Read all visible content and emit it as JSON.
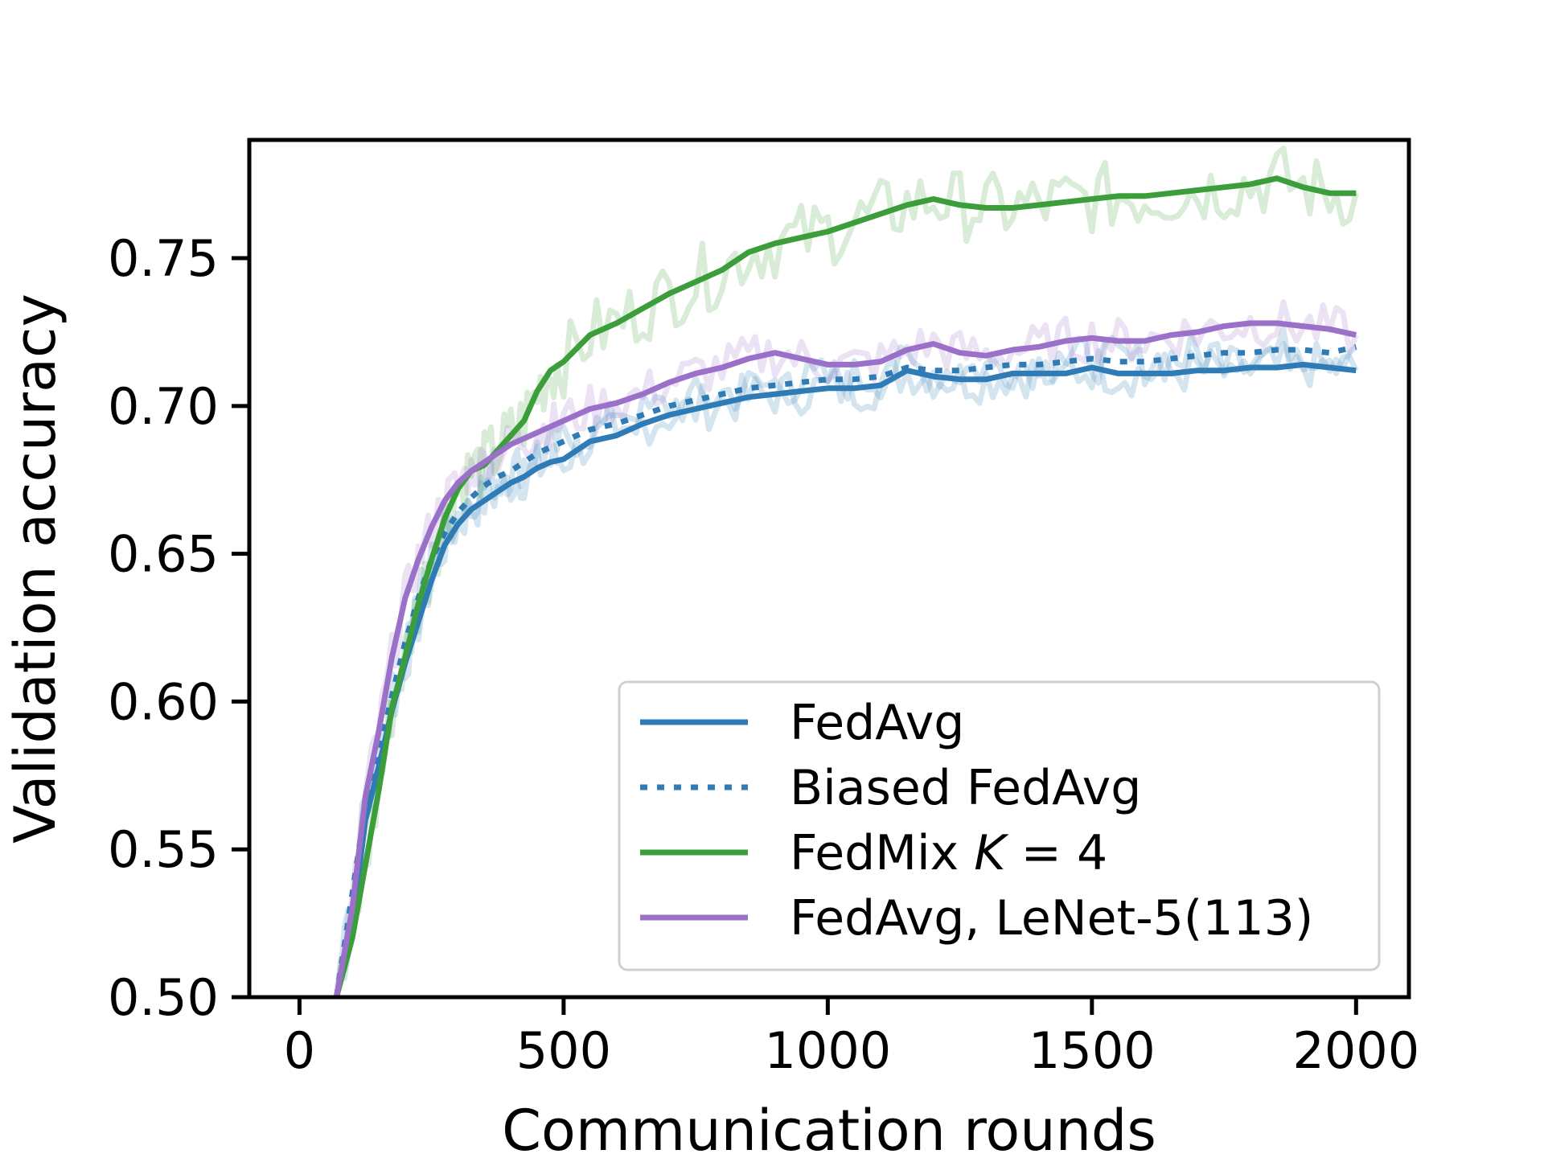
{
  "chart_data": {
    "type": "line",
    "title": "",
    "xlabel": "Communication rounds",
    "ylabel": "Validation accuracy",
    "xlim": [
      -95,
      2100
    ],
    "ylim": [
      0.5,
      0.79
    ],
    "xticks": [
      0,
      500,
      1000,
      1500,
      2000
    ],
    "xtick_labels": [
      "0",
      "500",
      "1000",
      "1500",
      "2000"
    ],
    "yticks": [
      0.5,
      0.55,
      0.6,
      0.65,
      0.7,
      0.75
    ],
    "ytick_labels": [
      "0.50",
      "0.55",
      "0.60",
      "0.65",
      "0.70",
      "0.75"
    ],
    "grid": false,
    "legend_position": "lower-right",
    "x": [
      70,
      100,
      125,
      150,
      175,
      200,
      225,
      250,
      275,
      300,
      325,
      350,
      375,
      400,
      425,
      450,
      475,
      500,
      550,
      600,
      650,
      700,
      750,
      800,
      850,
      900,
      950,
      1000,
      1050,
      1100,
      1150,
      1200,
      1250,
      1300,
      1350,
      1400,
      1450,
      1500,
      1550,
      1600,
      1650,
      1700,
      1750,
      1800,
      1850,
      1900,
      1950,
      2000
    ],
    "series": [
      {
        "name": "FedAvg",
        "legend_label": "FedAvg",
        "color": "#2f7bb6",
        "style": "solid",
        "values": [
          0.5,
          0.525,
          0.56,
          0.578,
          0.597,
          0.613,
          0.627,
          0.641,
          0.653,
          0.66,
          0.665,
          0.668,
          0.671,
          0.674,
          0.676,
          0.679,
          0.681,
          0.682,
          0.688,
          0.69,
          0.694,
          0.697,
          0.699,
          0.701,
          0.703,
          0.704,
          0.705,
          0.706,
          0.706,
          0.707,
          0.712,
          0.71,
          0.709,
          0.709,
          0.711,
          0.711,
          0.711,
          0.713,
          0.711,
          0.711,
          0.711,
          0.712,
          0.712,
          0.713,
          0.713,
          0.714,
          0.713,
          0.712
        ]
      },
      {
        "name": "Biased FedAvg",
        "legend_label": "Biased FedAvg",
        "color": "#2f7bb6",
        "style": "dotted",
        "values": [
          0.5,
          0.535,
          0.565,
          0.583,
          0.602,
          0.62,
          0.635,
          0.648,
          0.657,
          0.664,
          0.669,
          0.673,
          0.676,
          0.678,
          0.681,
          0.684,
          0.686,
          0.688,
          0.692,
          0.694,
          0.697,
          0.7,
          0.702,
          0.704,
          0.706,
          0.707,
          0.708,
          0.709,
          0.709,
          0.71,
          0.713,
          0.712,
          0.712,
          0.713,
          0.714,
          0.714,
          0.715,
          0.716,
          0.715,
          0.715,
          0.716,
          0.717,
          0.718,
          0.718,
          0.719,
          0.719,
          0.718,
          0.72
        ]
      },
      {
        "name": "FedMix K = 4",
        "legend_label": "FedMix",
        "legend_math_var": "K",
        "legend_math_rest": " = 4",
        "color": "#3c9e3a",
        "style": "solid",
        "values": [
          0.5,
          0.52,
          0.545,
          0.57,
          0.598,
          0.615,
          0.633,
          0.648,
          0.662,
          0.672,
          0.678,
          0.68,
          0.685,
          0.69,
          0.695,
          0.705,
          0.712,
          0.715,
          0.724,
          0.728,
          0.733,
          0.738,
          0.742,
          0.746,
          0.752,
          0.755,
          0.757,
          0.759,
          0.762,
          0.765,
          0.768,
          0.77,
          0.768,
          0.767,
          0.767,
          0.768,
          0.769,
          0.77,
          0.771,
          0.771,
          0.772,
          0.773,
          0.774,
          0.775,
          0.777,
          0.774,
          0.772,
          0.772
        ]
      },
      {
        "name": "FedAvg, LeNet-5(113)",
        "legend_label": "FedAvg, LeNet-5(113)",
        "color": "#9a70c9",
        "style": "solid",
        "values": [
          0.5,
          0.53,
          0.568,
          0.59,
          0.615,
          0.635,
          0.648,
          0.659,
          0.668,
          0.674,
          0.678,
          0.681,
          0.684,
          0.687,
          0.689,
          0.691,
          0.693,
          0.695,
          0.699,
          0.701,
          0.704,
          0.708,
          0.711,
          0.713,
          0.716,
          0.718,
          0.716,
          0.714,
          0.714,
          0.715,
          0.719,
          0.721,
          0.718,
          0.717,
          0.719,
          0.72,
          0.722,
          0.723,
          0.722,
          0.722,
          0.724,
          0.725,
          0.727,
          0.728,
          0.728,
          0.727,
          0.726,
          0.724
        ]
      }
    ]
  }
}
